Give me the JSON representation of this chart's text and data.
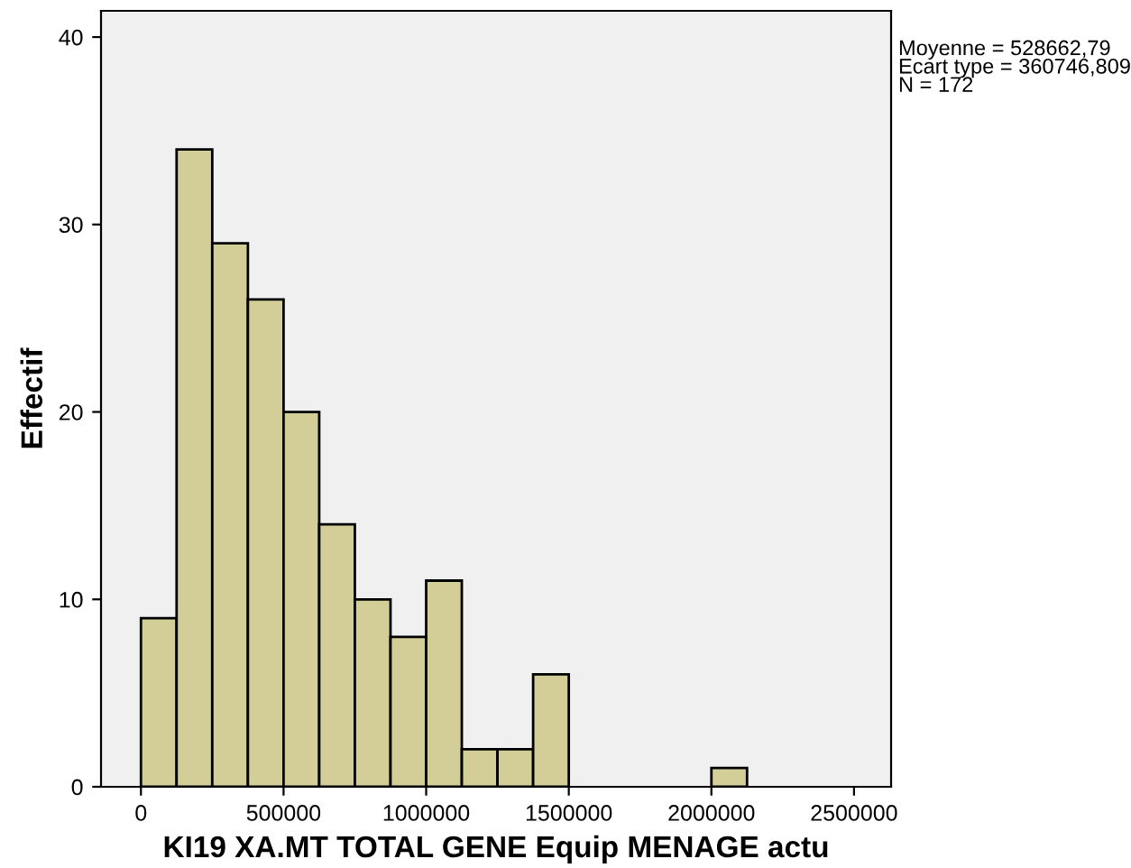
{
  "chart_data": {
    "type": "histogram",
    "xlabel": "KI19 XA.MT TOTAL GENE Equip MENAGE actu",
    "ylabel": "Effectif",
    "bins": [
      0,
      125000,
      250000,
      375000,
      500000,
      625000,
      750000,
      875000,
      1000000,
      1125000,
      1250000,
      1375000,
      1500000,
      1625000,
      1750000,
      1875000,
      2000000,
      2125000
    ],
    "values": [
      9,
      34,
      29,
      26,
      20,
      14,
      10,
      8,
      11,
      2,
      2,
      6,
      0,
      0,
      0,
      0,
      1
    ],
    "color": "#d3ce97",
    "xlim": [
      -140000,
      2630000
    ],
    "xticks": [
      0,
      500000,
      1000000,
      1500000,
      2000000,
      2500000
    ],
    "ylim": [
      0,
      41.4
    ],
    "yticks": [
      0,
      10,
      20,
      30,
      40
    ],
    "grid": false,
    "annotations": [
      "Moyenne = 528662,79\nEcart type = 360746,809\nN = 172"
    ]
  }
}
